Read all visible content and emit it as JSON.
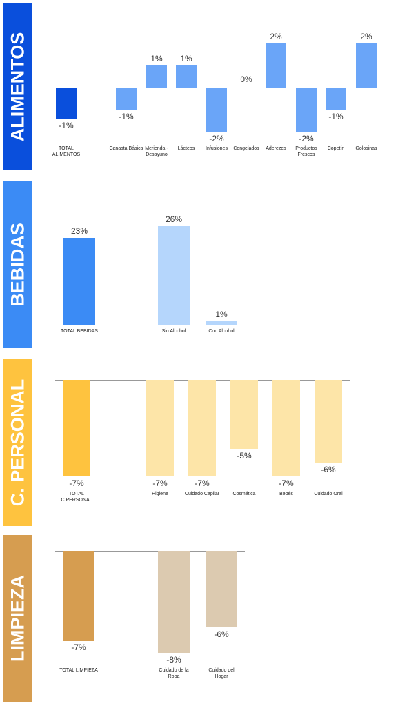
{
  "chart_data": [
    {
      "type": "bar",
      "title": "ALIMENTOS",
      "panel_color": "#0a4fdc",
      "categories": [
        "TOTAL ALIMENTOS",
        "Canasta Básica",
        "Merienda - Desayuno",
        "Lácteos",
        "Infusiones",
        "Congelados",
        "Aderezos",
        "Productos Frescos",
        "Copetín",
        "Golosinas"
      ],
      "values": [
        -1.4,
        -1,
        1,
        1,
        -2,
        0,
        2,
        -2,
        -1,
        2
      ],
      "value_labels": [
        "-1%",
        "-1%",
        "1%",
        "1%",
        "-2%",
        "0%",
        "2%",
        "-2%",
        "-1%",
        "2%"
      ],
      "colors": [
        "#0a4fdc",
        "#6aa5f8",
        "#6aa5f8",
        "#6aa5f8",
        "#6aa5f8",
        "#6aa5f8",
        "#6aa5f8",
        "#6aa5f8",
        "#6aa5f8",
        "#6aa5f8"
      ],
      "ylim": [
        -2.5,
        2.5
      ]
    },
    {
      "type": "bar",
      "title": "BEBIDAS",
      "panel_color": "#3b8bf5",
      "categories": [
        "TOTAL BEBIDAS",
        "Sin Alcohol",
        "Con Alcohol"
      ],
      "values": [
        23,
        26,
        1
      ],
      "value_labels": [
        "23%",
        "26%",
        "1%"
      ],
      "colors": [
        "#3b8bf5",
        "#b5d6fc",
        "#b5d6fc"
      ],
      "ylim": [
        0,
        26
      ]
    },
    {
      "type": "bar",
      "title": "C. PERSONAL",
      "panel_color": "#fec33f",
      "categories": [
        "TOTAL C.PERSONAL",
        "Higiene",
        "Cuidado Capilar",
        "Cosmética",
        "Bebés",
        "Cuidado Oral"
      ],
      "values": [
        -7,
        -7,
        -7,
        -5,
        -7,
        -6
      ],
      "value_labels": [
        "-7%",
        "-7%",
        "-7%",
        "-5%",
        "-7%",
        "-6%"
      ],
      "colors": [
        "#fec33f",
        "#fde5a8",
        "#fde5a8",
        "#fde5a8",
        "#fde5a8",
        "#fde5a8"
      ],
      "ylim": [
        -7,
        0
      ]
    },
    {
      "type": "bar",
      "title": "LIMPIEZA",
      "panel_color": "#d69d50",
      "categories": [
        "TOTAL LIMPIEZA",
        "Cuidado de la Ropa",
        "Cuidado del Hogar"
      ],
      "values": [
        -7,
        -8,
        -6
      ],
      "value_labels": [
        "-7%",
        "-8%",
        "-6%"
      ],
      "colors": [
        "#d69d50",
        "#dccab0",
        "#dccab0"
      ],
      "ylim": [
        -8,
        0
      ]
    }
  ]
}
